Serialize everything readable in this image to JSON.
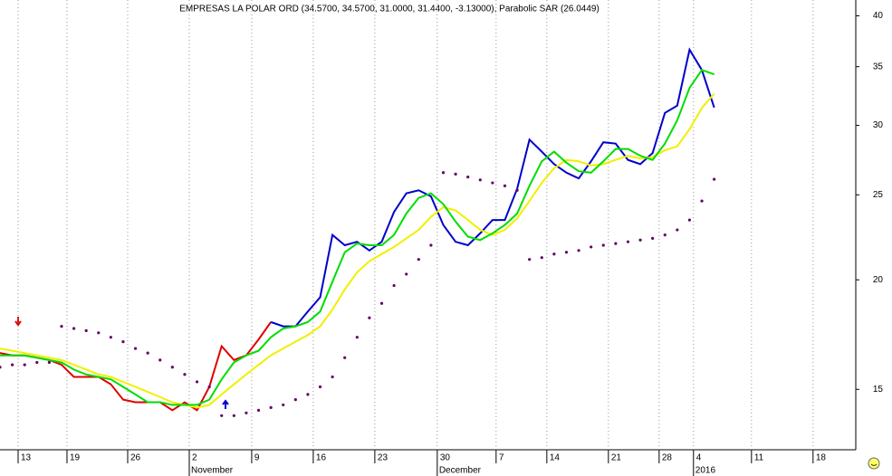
{
  "chart_data": {
    "type": "line",
    "title": "EMPRESAS LA POLAR ORD (34.5700, 34.5700, 31.0000, 31.4400, -3.13000), Parabolic SAR (26.0449)",
    "x": [
      0,
      1,
      2,
      3,
      4,
      5,
      6,
      7,
      8,
      9,
      10,
      11,
      12,
      13,
      14,
      15,
      16,
      17,
      18,
      19,
      20,
      21,
      22,
      23,
      24,
      25,
      26,
      27,
      28,
      29,
      30,
      31,
      32,
      33,
      34,
      35,
      36,
      37,
      38,
      39,
      40,
      41,
      42,
      43,
      44,
      45,
      46,
      47,
      48,
      49,
      50,
      51,
      52,
      53,
      54,
      55,
      56,
      57,
      58
    ],
    "series": [
      {
        "color": "#e00000",
        "style": "line",
        "values": [
          16.5,
          16.4,
          16.4,
          16.3,
          16.2,
          16.0,
          15.5,
          15.5,
          15.5,
          15.2,
          14.6,
          14.5,
          14.5,
          14.5,
          14.2,
          14.5,
          14.2,
          15.1,
          16.8,
          16.2,
          16.4,
          17.1,
          17.9,
          null,
          null,
          null,
          null,
          null,
          null,
          null,
          null,
          null,
          null,
          null,
          null,
          null,
          null,
          null,
          null,
          null,
          null,
          null,
          null,
          null,
          null,
          null,
          null,
          null,
          null,
          null,
          null,
          null,
          null,
          null,
          null,
          null,
          null,
          null,
          null
        ]
      },
      {
        "color": "#0000cc",
        "style": "line",
        "values": [
          null,
          null,
          null,
          null,
          null,
          null,
          null,
          null,
          null,
          null,
          null,
          null,
          null,
          null,
          null,
          null,
          null,
          null,
          null,
          null,
          null,
          null,
          17.9,
          17.7,
          17.7,
          18.4,
          19.1,
          22.5,
          21.9,
          22.1,
          21.6,
          22.1,
          23.9,
          25.1,
          25.3,
          24.9,
          23.1,
          22.1,
          21.9,
          22.6,
          23.4,
          23.4,
          25.4,
          28.9,
          28.0,
          27.1,
          26.5,
          26.1,
          27.3,
          28.7,
          28.6,
          27.4,
          27.1,
          27.9,
          31.0,
          31.6,
          36.6,
          34.7,
          31.44
        ]
      },
      {
        "color": "#f0f000",
        "style": "line",
        "values": [
          16.7,
          16.6,
          16.5,
          16.4,
          16.3,
          16.2,
          16.0,
          15.8,
          15.6,
          15.5,
          15.3,
          15.1,
          14.9,
          14.7,
          14.5,
          14.4,
          14.3,
          14.4,
          14.8,
          15.2,
          15.6,
          16.0,
          16.4,
          16.7,
          17.0,
          17.3,
          17.7,
          18.5,
          19.5,
          20.4,
          21.0,
          21.4,
          21.8,
          22.3,
          22.8,
          23.6,
          24.2,
          24.0,
          23.4,
          22.8,
          22.5,
          22.8,
          23.5,
          24.6,
          25.8,
          26.8,
          27.4,
          27.3,
          27.0,
          27.1,
          27.4,
          27.7,
          27.5,
          27.6,
          28.1,
          28.4,
          29.7,
          31.4,
          32.6
        ]
      },
      {
        "color": "#00dd00",
        "style": "line",
        "values": [
          16.4,
          16.4,
          16.4,
          16.3,
          16.2,
          16.1,
          15.8,
          15.6,
          15.5,
          15.4,
          15.1,
          14.8,
          14.5,
          14.5,
          14.4,
          14.4,
          14.4,
          14.6,
          15.4,
          16.1,
          16.4,
          16.6,
          17.2,
          17.6,
          17.7,
          17.9,
          18.4,
          19.9,
          21.5,
          22.0,
          21.9,
          21.9,
          22.5,
          23.8,
          24.8,
          25.1,
          24.4,
          23.3,
          22.4,
          22.2,
          22.6,
          23.1,
          23.8,
          25.6,
          27.3,
          28.0,
          27.2,
          26.6,
          26.5,
          27.3,
          28.2,
          28.2,
          27.7,
          27.4,
          28.6,
          30.4,
          33.1,
          34.7,
          34.3
        ]
      },
      {
        "color": "#660066",
        "style": "markers",
        "values": [
          15.9,
          16.0,
          16.0,
          16.1,
          16.1,
          17.7,
          17.6,
          17.5,
          17.4,
          17.2,
          17.0,
          16.7,
          16.5,
          16.2,
          15.9,
          15.6,
          15.3,
          15.1,
          14.0,
          14.0,
          14.1,
          14.2,
          14.3,
          14.4,
          14.6,
          14.8,
          15.1,
          15.5,
          16.3,
          17.2,
          18.1,
          18.8,
          19.7,
          20.3,
          21.1,
          21.9,
          26.5,
          26.4,
          26.2,
          26.0,
          25.8,
          25.6,
          25.3,
          21.1,
          21.2,
          21.4,
          21.5,
          21.6,
          21.8,
          21.9,
          22.0,
          22.1,
          22.2,
          22.3,
          22.5,
          22.8,
          23.4,
          24.6,
          26.0449
        ]
      }
    ],
    "xlim": [
      0,
      69.5
    ],
    "xticks": [
      {
        "value": 1.47,
        "label": "13"
      },
      {
        "value": 5.44,
        "label": "19"
      },
      {
        "value": 10.37,
        "label": "26"
      },
      {
        "value": 15.37,
        "label": "2"
      },
      {
        "value": 20.44,
        "label": "9"
      },
      {
        "value": 25.44,
        "label": "16"
      },
      {
        "value": 30.44,
        "label": "23"
      },
      {
        "value": 35.51,
        "label": "30"
      },
      {
        "value": 40.29,
        "label": "7"
      },
      {
        "value": 44.41,
        "label": "14"
      },
      {
        "value": 49.41,
        "label": "21"
      },
      {
        "value": 53.53,
        "label": "28"
      },
      {
        "value": 56.32,
        "label": "4"
      },
      {
        "value": 61.03,
        "label": "11"
      },
      {
        "value": 66.03,
        "label": "18"
      }
    ],
    "month_labels": [
      {
        "value": 15.37,
        "label": "November"
      },
      {
        "value": 35.51,
        "label": "December"
      },
      {
        "value": 56.32,
        "label": "2016"
      }
    ],
    "ylim": [
      12.8,
      41.7
    ],
    "yticks": [
      15,
      20,
      25,
      30,
      35,
      40
    ],
    "log_scale": true,
    "x_grid": true
  }
}
